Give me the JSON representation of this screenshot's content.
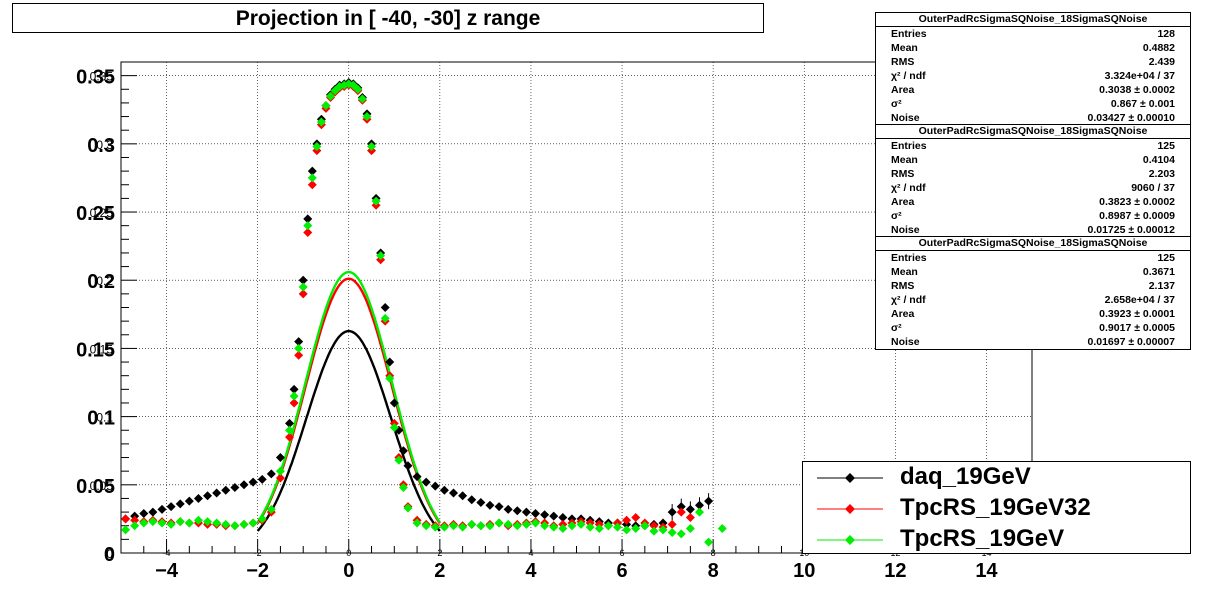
{
  "title": "Projection in [ -40, -30] z range",
  "chart_data": {
    "type": "scatter",
    "title": "Projection in [ -40, -30] z range",
    "xlim": [
      -5,
      15
    ],
    "ylim": [
      0,
      0.36
    ],
    "x_ticks": [
      -4,
      -2,
      0,
      2,
      4,
      6,
      8,
      10,
      12,
      14
    ],
    "x_tick_labels": [
      "−4",
      "−2",
      "0",
      "2",
      "4",
      "6",
      "8",
      "10",
      "12",
      "14"
    ],
    "x_tick_small_labels": [
      "-4",
      "-2",
      "0",
      "2",
      "4",
      "6",
      "8",
      "10",
      "12",
      "14"
    ],
    "y_ticks": [
      0,
      0.05,
      0.1,
      0.15,
      0.2,
      0.25,
      0.3,
      0.35
    ],
    "y_tick_labels": [
      "0",
      "0.05",
      "0.1",
      "0.15",
      "0.2",
      "0.25",
      "0.3",
      "0.35"
    ],
    "grid": true,
    "legend_position": "bottom-right",
    "series": [
      {
        "name": "daq_19GeV",
        "color": "#000000",
        "x": [
          -4.9,
          -4.7,
          -4.5,
          -4.3,
          -4.1,
          -3.9,
          -3.7,
          -3.5,
          -3.3,
          -3.1,
          -2.9,
          -2.7,
          -2.5,
          -2.3,
          -2.1,
          -1.9,
          -1.7,
          -1.5,
          -1.3,
          -1.2,
          -1.1,
          -1.0,
          -0.9,
          -0.8,
          -0.7,
          -0.6,
          -0.5,
          -0.4,
          -0.3,
          -0.2,
          -0.1,
          0.0,
          0.1,
          0.2,
          0.3,
          0.4,
          0.5,
          0.6,
          0.7,
          0.8,
          0.9,
          1.0,
          1.1,
          1.2,
          1.3,
          1.5,
          1.7,
          1.9,
          2.1,
          2.3,
          2.5,
          2.7,
          2.9,
          3.1,
          3.3,
          3.5,
          3.7,
          3.9,
          4.1,
          4.3,
          4.5,
          4.7,
          4.9,
          5.1,
          5.3,
          5.5,
          5.7,
          5.9,
          6.1,
          6.3,
          6.5,
          6.7,
          6.9,
          7.1,
          7.3,
          7.5,
          7.7,
          7.9
        ],
        "y": [
          0.025,
          0.027,
          0.029,
          0.03,
          0.032,
          0.034,
          0.036,
          0.038,
          0.04,
          0.042,
          0.044,
          0.046,
          0.048,
          0.05,
          0.052,
          0.054,
          0.058,
          0.07,
          0.095,
          0.12,
          0.155,
          0.2,
          0.245,
          0.28,
          0.3,
          0.318,
          0.328,
          0.336,
          0.34,
          0.343,
          0.344,
          0.345,
          0.344,
          0.341,
          0.334,
          0.322,
          0.3,
          0.26,
          0.22,
          0.18,
          0.14,
          0.11,
          0.09,
          0.075,
          0.064,
          0.056,
          0.052,
          0.049,
          0.046,
          0.044,
          0.042,
          0.039,
          0.037,
          0.035,
          0.034,
          0.032,
          0.031,
          0.03,
          0.029,
          0.028,
          0.027,
          0.026,
          0.025,
          0.025,
          0.024,
          0.023,
          0.022,
          0.022,
          0.021,
          0.02,
          0.02,
          0.021,
          0.022,
          0.03,
          0.034,
          0.032,
          0.035,
          0.038
        ]
      },
      {
        "name": "TpcRS_19GeV32",
        "color": "#ff0000",
        "x": [
          -4.9,
          -4.7,
          -4.5,
          -4.3,
          -4.1,
          -3.9,
          -3.7,
          -3.5,
          -3.3,
          -3.1,
          -2.9,
          -2.7,
          -2.5,
          -2.3,
          -2.1,
          -1.9,
          -1.7,
          -1.5,
          -1.3,
          -1.2,
          -1.1,
          -1.0,
          -0.9,
          -0.8,
          -0.7,
          -0.6,
          -0.5,
          -0.4,
          -0.3,
          -0.2,
          -0.1,
          0.0,
          0.1,
          0.2,
          0.3,
          0.4,
          0.5,
          0.6,
          0.7,
          0.8,
          0.9,
          1.0,
          1.1,
          1.2,
          1.3,
          1.5,
          1.7,
          1.9,
          2.1,
          2.3,
          2.5,
          2.7,
          2.9,
          3.1,
          3.3,
          3.5,
          3.7,
          3.9,
          4.1,
          4.3,
          4.5,
          4.7,
          4.9,
          5.1,
          5.3,
          5.5,
          5.7,
          5.9,
          6.1,
          6.3,
          6.5,
          6.7,
          6.9,
          7.1,
          7.3,
          7.5
        ],
        "y": [
          0.025,
          0.024,
          0.023,
          0.024,
          0.023,
          0.022,
          0.023,
          0.022,
          0.022,
          0.021,
          0.021,
          0.02,
          0.02,
          0.021,
          0.022,
          0.024,
          0.03,
          0.055,
          0.085,
          0.11,
          0.145,
          0.19,
          0.235,
          0.27,
          0.295,
          0.314,
          0.326,
          0.334,
          0.338,
          0.341,
          0.342,
          0.343,
          0.342,
          0.339,
          0.332,
          0.318,
          0.295,
          0.255,
          0.215,
          0.17,
          0.13,
          0.095,
          0.07,
          0.05,
          0.034,
          0.024,
          0.021,
          0.02,
          0.02,
          0.021,
          0.02,
          0.021,
          0.02,
          0.021,
          0.022,
          0.02,
          0.021,
          0.022,
          0.023,
          0.022,
          0.02,
          0.021,
          0.022,
          0.023,
          0.022,
          0.021,
          0.02,
          0.022,
          0.024,
          0.026,
          0.022,
          0.02,
          0.019,
          0.021,
          0.03,
          0.026
        ]
      },
      {
        "name": "TpcRS_19GeV",
        "color": "#00ee00",
        "x": [
          -4.9,
          -4.7,
          -4.5,
          -4.3,
          -4.1,
          -3.9,
          -3.7,
          -3.5,
          -3.3,
          -3.1,
          -2.9,
          -2.7,
          -2.5,
          -2.3,
          -2.1,
          -1.9,
          -1.7,
          -1.5,
          -1.3,
          -1.2,
          -1.1,
          -1.0,
          -0.9,
          -0.8,
          -0.7,
          -0.6,
          -0.5,
          -0.4,
          -0.3,
          -0.2,
          -0.1,
          0.0,
          0.1,
          0.2,
          0.3,
          0.4,
          0.5,
          0.6,
          0.7,
          0.8,
          0.9,
          1.0,
          1.1,
          1.2,
          1.3,
          1.5,
          1.7,
          1.9,
          2.1,
          2.3,
          2.5,
          2.7,
          2.9,
          3.1,
          3.3,
          3.5,
          3.7,
          3.9,
          4.1,
          4.3,
          4.5,
          4.7,
          4.9,
          5.1,
          5.3,
          5.5,
          5.7,
          5.9,
          6.1,
          6.3,
          6.5,
          6.7,
          6.9,
          7.1,
          7.3,
          7.5,
          7.7,
          7.9,
          8.2
        ],
        "y": [
          0.017,
          0.02,
          0.022,
          0.023,
          0.022,
          0.021,
          0.023,
          0.022,
          0.024,
          0.023,
          0.022,
          0.021,
          0.02,
          0.021,
          0.022,
          0.025,
          0.032,
          0.06,
          0.09,
          0.115,
          0.15,
          0.195,
          0.24,
          0.275,
          0.298,
          0.316,
          0.328,
          0.335,
          0.339,
          0.342,
          0.343,
          0.344,
          0.343,
          0.34,
          0.333,
          0.32,
          0.298,
          0.258,
          0.218,
          0.172,
          0.128,
          0.092,
          0.068,
          0.048,
          0.033,
          0.022,
          0.02,
          0.019,
          0.019,
          0.02,
          0.019,
          0.021,
          0.02,
          0.02,
          0.022,
          0.021,
          0.02,
          0.021,
          0.022,
          0.02,
          0.019,
          0.018,
          0.02,
          0.021,
          0.019,
          0.018,
          0.02,
          0.019,
          0.017,
          0.018,
          0.02,
          0.016,
          0.017,
          0.015,
          0.014,
          0.018,
          0.03,
          0.008,
          0.018
        ]
      }
    ],
    "fits": [
      {
        "color": "#000000",
        "area": 0.3038,
        "sigma2": 0.867,
        "noise": 0.03427
      },
      {
        "color": "#ff0000",
        "area": 0.3823,
        "sigma2": 0.8987,
        "noise": 0.01725
      },
      {
        "color": "#00ee00",
        "area": 0.3923,
        "sigma2": 0.9017,
        "noise": 0.01697
      }
    ]
  },
  "stats_boxes": [
    {
      "name": "OuterPadRcSigmaSQNoise_18SigmaSQNoise",
      "rows": [
        {
          "k": "Entries",
          "v": "128"
        },
        {
          "k": "Mean",
          "v": "0.4882"
        },
        {
          "k": "RMS",
          "v": "2.439"
        },
        {
          "k": "χ² / ndf",
          "v": "3.324e+04 / 37"
        },
        {
          "k": "Area",
          "v": "0.3038 ± 0.0002"
        },
        {
          "k": "σ²",
          "v": "0.867 ± 0.001"
        },
        {
          "k": "Noise",
          "v": "0.03427 ± 0.00010"
        }
      ]
    },
    {
      "name": "OuterPadRcSigmaSQNoise_18SigmaSQNoise",
      "rows": [
        {
          "k": "Entries",
          "v": "125"
        },
        {
          "k": "Mean",
          "v": "0.4104"
        },
        {
          "k": "RMS",
          "v": "2.203"
        },
        {
          "k": "χ² / ndf",
          "v": "9060 / 37"
        },
        {
          "k": "Area",
          "v": "0.3823 ± 0.0002"
        },
        {
          "k": "σ²",
          "v": "0.8987 ± 0.0009"
        },
        {
          "k": "Noise",
          "v": "0.01725 ± 0.00012"
        }
      ]
    },
    {
      "name": "OuterPadRcSigmaSQNoise_18SigmaSQNoise",
      "rows": [
        {
          "k": "Entries",
          "v": "125"
        },
        {
          "k": "Mean",
          "v": "0.3671"
        },
        {
          "k": "RMS",
          "v": "2.137"
        },
        {
          "k": "χ² / ndf",
          "v": "2.658e+04 / 37"
        },
        {
          "k": "Area",
          "v": "0.3923 ± 0.0001"
        },
        {
          "k": "σ²",
          "v": "0.9017 ± 0.0005"
        },
        {
          "k": "Noise",
          "v": "0.01697 ± 0.00007"
        }
      ]
    }
  ],
  "legend": {
    "entries": [
      {
        "label": "daq_19GeV",
        "color": "#000000"
      },
      {
        "label": "TpcRS_19GeV32",
        "color": "#ff0000"
      },
      {
        "label": "TpcRS_19GeV",
        "color": "#00ee00"
      }
    ]
  }
}
